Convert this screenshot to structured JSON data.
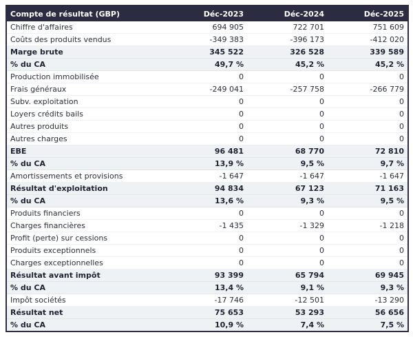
{
  "table": {
    "title_column": "Compte de résultat (GBP)",
    "columns": [
      "Déc-2023",
      "Déc-2024",
      "Déc-2025"
    ],
    "colors": {
      "header_bg": "#2b2c42",
      "header_text": "#ffffff",
      "total_row_bg": "#eff2f5",
      "body_text": "#2a2e38",
      "outer_border": "#2b2c42"
    },
    "rows": [
      {
        "label": "Chiffre d'affaires",
        "values": [
          "694 905",
          "722 701",
          "751 609"
        ],
        "style": "normal"
      },
      {
        "label": "Coûts des produits vendus",
        "values": [
          "-349 383",
          "-396 173",
          "-412 020"
        ],
        "style": "normal"
      },
      {
        "label": "Marge brute",
        "values": [
          "345 522",
          "326 528",
          "339 589"
        ],
        "style": "total"
      },
      {
        "label": "% du CA",
        "values": [
          "49,7 %",
          "45,2 %",
          "45,2 %"
        ],
        "style": "total"
      },
      {
        "label": "Production immobilisée",
        "values": [
          "0",
          "0",
          "0"
        ],
        "style": "normal"
      },
      {
        "label": "Frais généraux",
        "values": [
          "-249 041",
          "-257 758",
          "-266 779"
        ],
        "style": "normal"
      },
      {
        "label": "Subv. exploitation",
        "values": [
          "0",
          "0",
          "0"
        ],
        "style": "normal"
      },
      {
        "label": "Loyers crédits bails",
        "values": [
          "0",
          "0",
          "0"
        ],
        "style": "normal"
      },
      {
        "label": "Autres produits",
        "values": [
          "0",
          "0",
          "0"
        ],
        "style": "normal"
      },
      {
        "label": "Autres charges",
        "values": [
          "0",
          "0",
          "0"
        ],
        "style": "normal"
      },
      {
        "label": "EBE",
        "values": [
          "96 481",
          "68 770",
          "72 810"
        ],
        "style": "total"
      },
      {
        "label": "% du CA",
        "values": [
          "13,9 %",
          "9,5 %",
          "9,7 %"
        ],
        "style": "total"
      },
      {
        "label": "Amortissements et provisions",
        "values": [
          "-1 647",
          "-1 647",
          "-1 647"
        ],
        "style": "normal"
      },
      {
        "label": "Résultat d'exploitation",
        "values": [
          "94 834",
          "67 123",
          "71 163"
        ],
        "style": "total"
      },
      {
        "label": "% du CA",
        "values": [
          "13,6 %",
          "9,3 %",
          "9,5 %"
        ],
        "style": "total"
      },
      {
        "label": "Produits financiers",
        "values": [
          "0",
          "0",
          "0"
        ],
        "style": "normal"
      },
      {
        "label": "Charges financières",
        "values": [
          "-1 435",
          "-1 329",
          "-1 218"
        ],
        "style": "normal"
      },
      {
        "label": "Profit (perte) sur cessions",
        "values": [
          "0",
          "0",
          "0"
        ],
        "style": "normal"
      },
      {
        "label": "Produits exceptionnels",
        "values": [
          "0",
          "0",
          "0"
        ],
        "style": "normal"
      },
      {
        "label": "Charges exceptionnelles",
        "values": [
          "0",
          "0",
          "0"
        ],
        "style": "normal"
      },
      {
        "label": "Résultat avant impôt",
        "values": [
          "93 399",
          "65 794",
          "69 945"
        ],
        "style": "total"
      },
      {
        "label": "% du CA",
        "values": [
          "13,4 %",
          "9,1 %",
          "9,3 %"
        ],
        "style": "total"
      },
      {
        "label": "Impôt sociétés",
        "values": [
          "-17 746",
          "-12 501",
          "-13 290"
        ],
        "style": "normal"
      },
      {
        "label": "Résultat net",
        "values": [
          "75 653",
          "53 293",
          "56 656"
        ],
        "style": "total"
      },
      {
        "label": "% du CA",
        "values": [
          "10,9 %",
          "7,4 %",
          "7,5 %"
        ],
        "style": "total"
      }
    ]
  }
}
